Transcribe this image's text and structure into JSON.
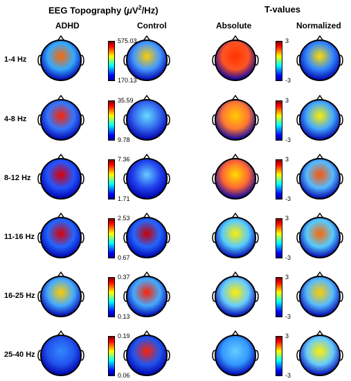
{
  "header": {
    "topography_title_prefix": "EEG Topography (",
    "topography_title_mu": "μ",
    "topography_title_v": "V",
    "topography_title_sup": "2",
    "topography_title_suffix": "/Hz)",
    "tvalues_title": "T-values"
  },
  "columns": {
    "adhd": "ADHD",
    "control": "Control",
    "absolute": "Absolute",
    "normalized": "Normalized"
  },
  "rows": [
    {
      "band": "1-4 Hz",
      "power_max": "575.03",
      "power_min": "170.13",
      "t_max": "3",
      "t_min": "-3"
    },
    {
      "band": "4-8 Hz",
      "power_max": "35.59",
      "power_min": "9.78",
      "t_max": "3",
      "t_min": "-3"
    },
    {
      "band": "8-12 Hz",
      "power_max": "7.36",
      "power_min": "1.71",
      "t_max": "3",
      "t_min": "-3"
    },
    {
      "band": "11-16 Hz",
      "power_max": "2.53",
      "power_min": "0.67",
      "t_max": "3",
      "t_min": "-3"
    },
    {
      "band": "16-25 Hz",
      "power_max": "0.37",
      "power_min": "0.13",
      "t_max": "3",
      "t_min": "-3"
    },
    {
      "band": "25-40 Hz",
      "power_max": "0.19",
      "power_min": "0.06",
      "t_max": "3",
      "t_min": "-3"
    }
  ],
  "colormap": [
    "#00008f",
    "#0000ff",
    "#00ffff",
    "#ffff00",
    "#ff0000",
    "#800000"
  ]
}
